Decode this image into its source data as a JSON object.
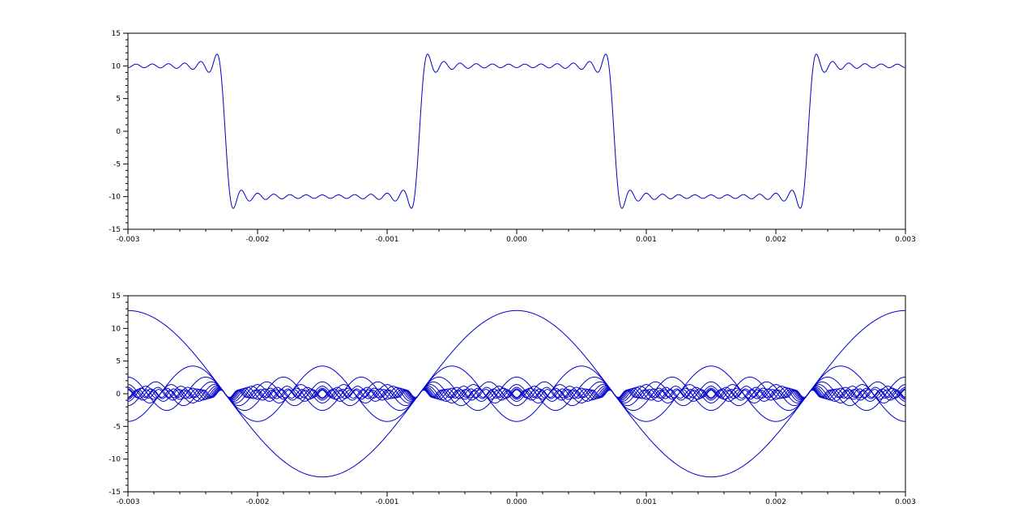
{
  "chart_data": [
    {
      "type": "line",
      "title": "",
      "xlabel": "",
      "ylabel": "",
      "xlim": [
        -0.003,
        0.003
      ],
      "ylim": [
        -15,
        15
      ],
      "x_ticks": [
        "-0.003",
        "-0.002",
        "-0.001",
        "0.000",
        "0.001",
        "0.002",
        "0.003"
      ],
      "y_ticks": [
        "15",
        "10",
        "5",
        "0",
        "-5",
        "-10",
        "-15"
      ],
      "grid": false,
      "legend": "none",
      "series_color": "#0000cc",
      "series": [
        {
          "description_values": "square wave sum of 12 odd harmonics",
          "amplitude": 10,
          "period": 0.003,
          "harmonics": [
            1,
            3,
            5,
            7,
            9,
            11,
            13,
            15,
            17,
            19,
            21,
            23
          ],
          "waveform": "cosine-sum"
        }
      ]
    },
    {
      "type": "line",
      "title": "",
      "xlabel": "",
      "ylabel": "",
      "xlim": [
        -0.003,
        0.003
      ],
      "ylim": [
        -15,
        15
      ],
      "x_ticks": [
        "-0.003",
        "-0.002",
        "-0.001",
        "0.000",
        "0.001",
        "0.002",
        "0.003"
      ],
      "y_ticks": [
        "15",
        "10",
        "5",
        "0",
        "-5",
        "-10",
        "-15"
      ],
      "grid": false,
      "legend": "none",
      "series_color": "#0000cc",
      "period": 0.003,
      "series": [
        {
          "harmonic": 1,
          "amplitude": 12.73
        },
        {
          "harmonic": 3,
          "amplitude": 4.24
        },
        {
          "harmonic": 5,
          "amplitude": 2.55
        },
        {
          "harmonic": 7,
          "amplitude": 1.82
        },
        {
          "harmonic": 9,
          "amplitude": 1.41
        },
        {
          "harmonic": 11,
          "amplitude": 1.16
        },
        {
          "harmonic": 13,
          "amplitude": 0.98
        },
        {
          "harmonic": 15,
          "amplitude": 0.85
        },
        {
          "harmonic": 17,
          "amplitude": 0.75
        },
        {
          "harmonic": 19,
          "amplitude": 0.67
        },
        {
          "harmonic": 21,
          "amplitude": 0.61
        },
        {
          "harmonic": 23,
          "amplitude": 0.55
        }
      ]
    }
  ]
}
